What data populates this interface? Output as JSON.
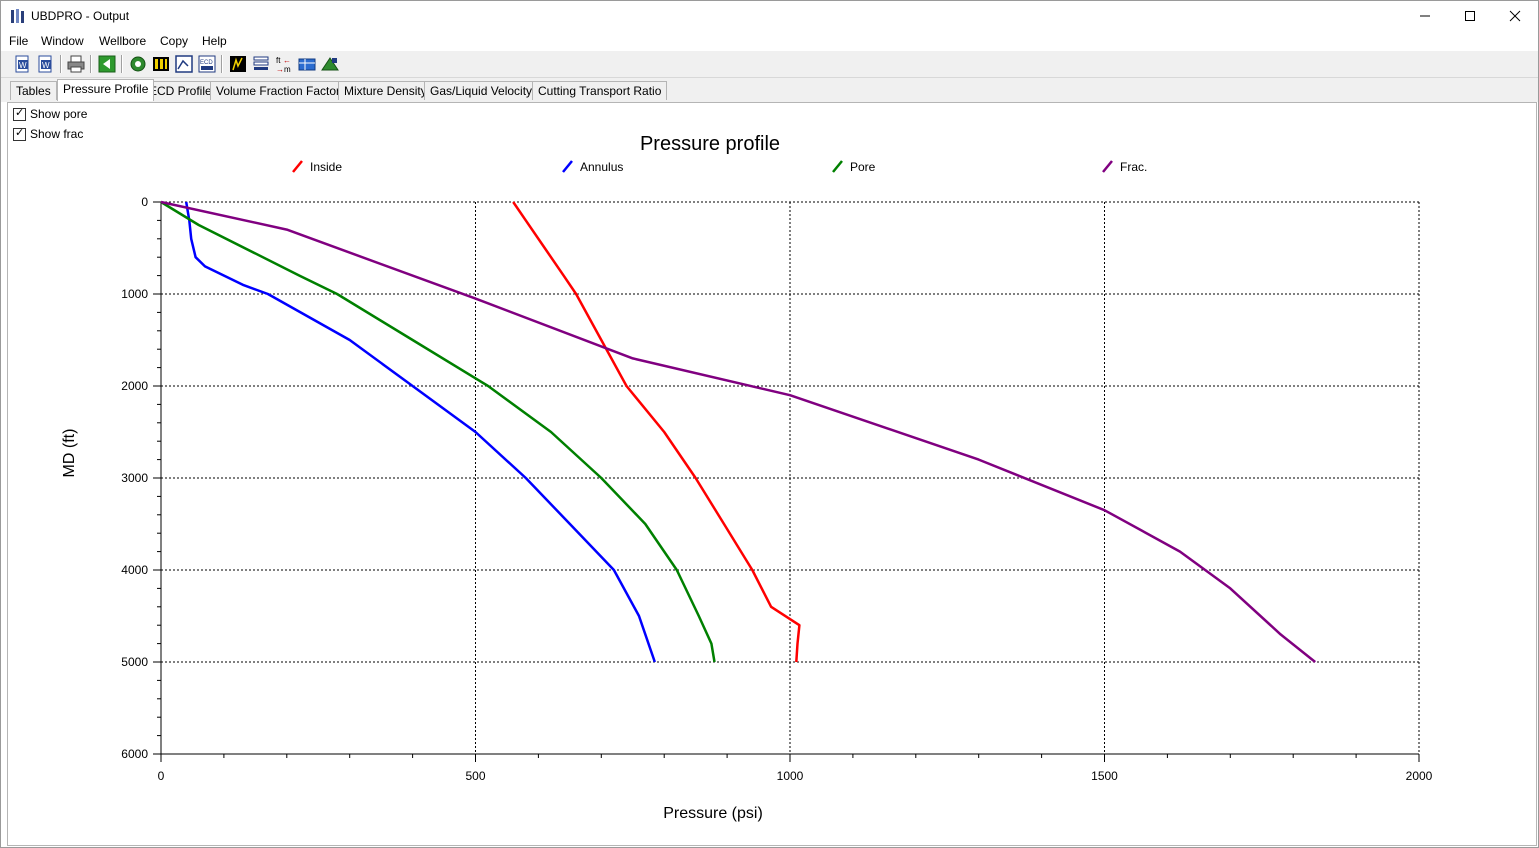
{
  "window": {
    "title": "UBDPRO - Output",
    "controls": [
      "minimize-icon",
      "maximize-icon",
      "close-icon"
    ]
  },
  "menu": [
    "File",
    "Window",
    "Wellbore",
    "Copy",
    "Help"
  ],
  "toolbar": {
    "icons": [
      "word-doc-icon",
      "word-export-icon",
      "print-icon",
      "back-arrow-icon",
      "refresh-icon",
      "columns-icon",
      "chart-select-icon",
      "ecd-icon",
      "plot-icon",
      "stack-icon",
      "ft-m-convert-icon",
      "table-icon",
      "export-icon"
    ]
  },
  "tabs": [
    {
      "label": "Tables",
      "active": false
    },
    {
      "label": "Pressure Profile",
      "active": true
    },
    {
      "label": "ECD Profile",
      "active": false
    },
    {
      "label": "Volume Fraction Factors",
      "active": false
    },
    {
      "label": "Mixture Density",
      "active": false
    },
    {
      "label": "Gas/Liquid Velocity",
      "active": false
    },
    {
      "label": "Cutting Transport Ratio",
      "active": false
    }
  ],
  "options": [
    {
      "label": "Show pore",
      "checked": true
    },
    {
      "label": "Show frac",
      "checked": true
    }
  ],
  "chart_data": {
    "type": "line",
    "title": "Pressure profile",
    "xlabel": "Pressure (psi)",
    "ylabel": "MD (ft)",
    "xlim": [
      0,
      2000
    ],
    "ylim": [
      0,
      6000
    ],
    "y_inverted": true,
    "grid": true,
    "legend_position": "top",
    "x_ticks": [
      "0",
      "500",
      "1000",
      "1500",
      "2000"
    ],
    "y_ticks": [
      "0",
      "1000",
      "2000",
      "3000",
      "4000",
      "5000",
      "6000"
    ],
    "series": [
      {
        "name": "Inside",
        "color": "#ff0000",
        "points": [
          [
            560,
            0
          ],
          [
            580,
            200
          ],
          [
            610,
            500
          ],
          [
            640,
            800
          ],
          [
            660,
            1000
          ],
          [
            700,
            1500
          ],
          [
            740,
            2000
          ],
          [
            800,
            2500
          ],
          [
            850,
            3000
          ],
          [
            895,
            3500
          ],
          [
            940,
            4000
          ],
          [
            970,
            4400
          ],
          [
            1015,
            4600
          ],
          [
            1012,
            4800
          ],
          [
            1010,
            5000
          ]
        ]
      },
      {
        "name": "Annulus",
        "color": "#0000ff",
        "points": [
          [
            40,
            0
          ],
          [
            45,
            200
          ],
          [
            48,
            400
          ],
          [
            55,
            600
          ],
          [
            70,
            700
          ],
          [
            130,
            900
          ],
          [
            170,
            1000
          ],
          [
            300,
            1500
          ],
          [
            400,
            2000
          ],
          [
            500,
            2500
          ],
          [
            580,
            3000
          ],
          [
            650,
            3500
          ],
          [
            720,
            4000
          ],
          [
            760,
            4500
          ],
          [
            785,
            5000
          ]
        ]
      },
      {
        "name": "Pore",
        "color": "#008000",
        "points": [
          [
            0,
            0
          ],
          [
            60,
            250
          ],
          [
            220,
            800
          ],
          [
            280,
            1000
          ],
          [
            400,
            1500
          ],
          [
            520,
            2000
          ],
          [
            620,
            2500
          ],
          [
            700,
            3000
          ],
          [
            770,
            3500
          ],
          [
            820,
            4000
          ],
          [
            855,
            4500
          ],
          [
            875,
            4800
          ],
          [
            880,
            5000
          ]
        ]
      },
      {
        "name": "Frac.",
        "color": "#800080",
        "points": [
          [
            0,
            0
          ],
          [
            200,
            300
          ],
          [
            500,
            1050
          ],
          [
            750,
            1700
          ],
          [
            1000,
            2100
          ],
          [
            1300,
            2800
          ],
          [
            1500,
            3350
          ],
          [
            1620,
            3800
          ],
          [
            1700,
            4200
          ],
          [
            1780,
            4700
          ],
          [
            1835,
            5000
          ]
        ]
      }
    ]
  }
}
